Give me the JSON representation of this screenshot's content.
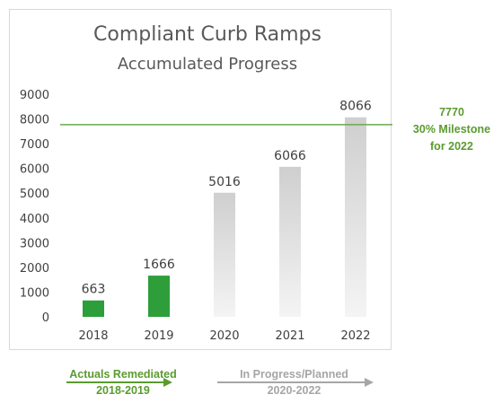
{
  "chart_data": {
    "type": "bar",
    "title": "Compliant Curb Ramps",
    "subtitle": "Accumulated Progress",
    "categories": [
      "2018",
      "2019",
      "2020",
      "2021",
      "2022"
    ],
    "values": [
      663,
      1666,
      5016,
      6066,
      8066
    ],
    "bar_colors": [
      "#2e9e3a",
      "#2e9e3a",
      "#d9d9d9",
      "#d9d9d9",
      "#d9d9d9"
    ],
    "ylim": [
      0,
      9000
    ],
    "yticks": [
      0,
      1000,
      2000,
      3000,
      4000,
      5000,
      6000,
      7000,
      8000,
      9000
    ],
    "grid": false,
    "milestone": {
      "value": 7770,
      "label_value": "7770",
      "label_line1": "30% Milestone",
      "label_line2": "for 2022",
      "color": "#6aa84f"
    }
  },
  "legend": {
    "actuals": {
      "line1": "Actuals Remediated",
      "line2": "2018-2019",
      "color": "#5a9b2f"
    },
    "planned": {
      "line1": "In Progress/Planned",
      "line2": "2020-2022",
      "color": "#a6a6a6"
    }
  }
}
